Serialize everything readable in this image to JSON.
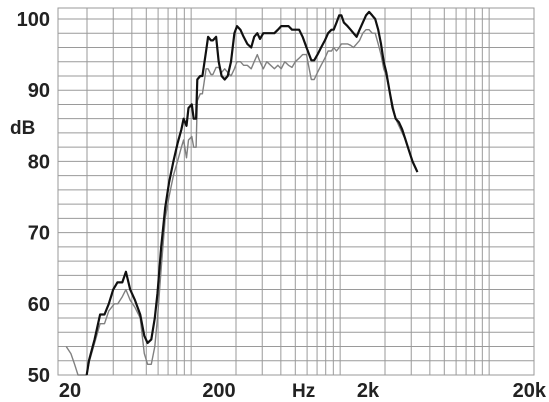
{
  "chart_data": {
    "type": "line",
    "title": "",
    "xlabel": "Hz",
    "ylabel": "dB",
    "x_scale": "log",
    "xlim": [
      15,
      20000
    ],
    "ylim": [
      50,
      102
    ],
    "grid": true,
    "legend": "none",
    "x_ticks": [
      {
        "value": 20,
        "label": "20"
      },
      {
        "value": 200,
        "label": "200"
      },
      {
        "value": 2000,
        "label": "2k"
      },
      {
        "value": 20000,
        "label": "20k"
      }
    ],
    "y_ticks": [
      {
        "value": 50,
        "label": "50"
      },
      {
        "value": 60,
        "label": "60"
      },
      {
        "value": 70,
        "label": "70"
      },
      {
        "value": 80,
        "label": "80"
      },
      {
        "value": 90,
        "label": "90"
      },
      {
        "value": 100,
        "label": "100"
      }
    ],
    "series": [
      {
        "color": "#111111",
        "width": 2.2,
        "points": [
          [
            19.9,
            49
          ],
          [
            20.6,
            52
          ],
          [
            22.5,
            55
          ],
          [
            24.5,
            58.5
          ],
          [
            26.2,
            58.5
          ],
          [
            28,
            60
          ],
          [
            30,
            62
          ],
          [
            32,
            63
          ],
          [
            34.5,
            63
          ],
          [
            36.5,
            64.5
          ],
          [
            39,
            62
          ],
          [
            42,
            60.5
          ],
          [
            45.5,
            58.5
          ],
          [
            48.5,
            55.5
          ],
          [
            51,
            54.5
          ],
          [
            54,
            55
          ],
          [
            57,
            58
          ],
          [
            59.5,
            61.5
          ],
          [
            63,
            68
          ],
          [
            67,
            73.5
          ],
          [
            71,
            77
          ],
          [
            76,
            80
          ],
          [
            81,
            82.5
          ],
          [
            86,
            84.5
          ],
          [
            89,
            86
          ],
          [
            93,
            85
          ],
          [
            96,
            87.5
          ],
          [
            101,
            88
          ],
          [
            104,
            86
          ],
          [
            108,
            86
          ],
          [
            110,
            91.5
          ],
          [
            115,
            92
          ],
          [
            119,
            92
          ],
          [
            122,
            93.5
          ],
          [
            126,
            95.5
          ],
          [
            130,
            97.5
          ],
          [
            136,
            97
          ],
          [
            140,
            97
          ],
          [
            147,
            97.5
          ],
          [
            153,
            94
          ],
          [
            160,
            92
          ],
          [
            168,
            91.5
          ],
          [
            176,
            92
          ],
          [
            185,
            94
          ],
          [
            195,
            98
          ],
          [
            203,
            99
          ],
          [
            214,
            98.5
          ],
          [
            225,
            97.5
          ],
          [
            238,
            96.5
          ],
          [
            253,
            96
          ],
          [
            265,
            97.5
          ],
          [
            278,
            98
          ],
          [
            290,
            97.2
          ],
          [
            305,
            98
          ],
          [
            322,
            98
          ],
          [
            342,
            98
          ],
          [
            362,
            98
          ],
          [
            382,
            98.5
          ],
          [
            402,
            99
          ],
          [
            425,
            99
          ],
          [
            450,
            99
          ],
          [
            475,
            98.5
          ],
          [
            500,
            98.5
          ],
          [
            530,
            98.5
          ],
          [
            560,
            97.5
          ],
          [
            595,
            96
          ],
          [
            620,
            95
          ],
          [
            640,
            94.2
          ],
          [
            670,
            94.2
          ],
          [
            705,
            95
          ],
          [
            745,
            96
          ],
          [
            790,
            97
          ],
          [
            830,
            98
          ],
          [
            875,
            98.5
          ],
          [
            905,
            98.5
          ],
          [
            945,
            99.5
          ],
          [
            985,
            100.5
          ],
          [
            1020,
            100.5
          ],
          [
            1060,
            99.5
          ],
          [
            1120,
            99
          ],
          [
            1175,
            98.5
          ],
          [
            1230,
            98
          ],
          [
            1290,
            97.5
          ],
          [
            1350,
            98.5
          ],
          [
            1420,
            99.5
          ],
          [
            1490,
            100.5
          ],
          [
            1565,
            101
          ],
          [
            1640,
            100.5
          ],
          [
            1720,
            100
          ],
          [
            1800,
            98.5
          ],
          [
            1880,
            96.5
          ],
          [
            1960,
            94
          ],
          [
            2040,
            92.5
          ],
          [
            2140,
            90
          ],
          [
            2250,
            87.5
          ],
          [
            2360,
            86
          ],
          [
            2480,
            85.5
          ],
          [
            2610,
            84.5
          ],
          [
            2750,
            83
          ],
          [
            2900,
            81.5
          ],
          [
            3060,
            80
          ],
          [
            3220,
            79
          ],
          [
            3300,
            78.5
          ]
        ]
      },
      {
        "color": "#808080",
        "width": 1.4,
        "points": [
          [
            14.5,
            54
          ],
          [
            15.6,
            53
          ],
          [
            16.5,
            51.5
          ],
          [
            17.4,
            50
          ],
          [
            19.9,
            49
          ],
          [
            20.8,
            52
          ],
          [
            22.5,
            54.5
          ],
          [
            24.5,
            57.2
          ],
          [
            26.2,
            57.2
          ],
          [
            28,
            59
          ],
          [
            30.5,
            60
          ],
          [
            32.2,
            60
          ],
          [
            34.5,
            61
          ],
          [
            36.5,
            62
          ],
          [
            39,
            60.5
          ],
          [
            42,
            59.5
          ],
          [
            45.5,
            58
          ],
          [
            48.5,
            53
          ],
          [
            51,
            51.5
          ],
          [
            54,
            51.5
          ],
          [
            57,
            54
          ],
          [
            59.5,
            58
          ],
          [
            63,
            65
          ],
          [
            67,
            72
          ],
          [
            71,
            75
          ],
          [
            76,
            78
          ],
          [
            81,
            80
          ],
          [
            86,
            82
          ],
          [
            89,
            83
          ],
          [
            93,
            80.5
          ],
          [
            96,
            83
          ],
          [
            101,
            83.5
          ],
          [
            104,
            82
          ],
          [
            108,
            82
          ],
          [
            110,
            88.5
          ],
          [
            115,
            89.5
          ],
          [
            119,
            89.5
          ],
          [
            122,
            91
          ],
          [
            126,
            93
          ],
          [
            130,
            93
          ],
          [
            136,
            92.2
          ],
          [
            140,
            92.2
          ],
          [
            147,
            93.2
          ],
          [
            153,
            93.2
          ],
          [
            160,
            92.5
          ],
          [
            168,
            93
          ],
          [
            176,
            92.5
          ],
          [
            185,
            92
          ],
          [
            195,
            93
          ],
          [
            203,
            94
          ],
          [
            214,
            94
          ],
          [
            225,
            93.5
          ],
          [
            238,
            93.5
          ],
          [
            253,
            93
          ],
          [
            265,
            94
          ],
          [
            278,
            95
          ],
          [
            290,
            94
          ],
          [
            305,
            93
          ],
          [
            322,
            94
          ],
          [
            342,
            93.5
          ],
          [
            362,
            93
          ],
          [
            382,
            93.5
          ],
          [
            402,
            93
          ],
          [
            425,
            94
          ],
          [
            450,
            93.5
          ],
          [
            475,
            93.2
          ],
          [
            500,
            94
          ],
          [
            530,
            94.5
          ],
          [
            560,
            95
          ],
          [
            595,
            95
          ],
          [
            620,
            93
          ],
          [
            640,
            91.5
          ],
          [
            670,
            91.5
          ],
          [
            705,
            92.5
          ],
          [
            745,
            93.5
          ],
          [
            790,
            94.5
          ],
          [
            830,
            95.5
          ],
          [
            875,
            95.5
          ],
          [
            905,
            96
          ],
          [
            945,
            95.5
          ],
          [
            985,
            96
          ],
          [
            1020,
            96.5
          ],
          [
            1060,
            96.5
          ],
          [
            1120,
            96.5
          ],
          [
            1175,
            96.3
          ],
          [
            1230,
            96
          ],
          [
            1290,
            96.5
          ],
          [
            1350,
            97
          ],
          [
            1420,
            98
          ],
          [
            1490,
            98.5
          ],
          [
            1565,
            98.5
          ],
          [
            1640,
            98
          ],
          [
            1720,
            98
          ],
          [
            1800,
            96.5
          ],
          [
            1880,
            95
          ],
          [
            1960,
            93
          ],
          [
            2040,
            92
          ],
          [
            2140,
            90
          ],
          [
            2250,
            88
          ],
          [
            2360,
            86
          ],
          [
            2480,
            85
          ],
          [
            2610,
            84
          ],
          [
            2750,
            83
          ],
          [
            2900,
            81.5
          ],
          [
            3060,
            80
          ],
          [
            3220,
            79
          ],
          [
            3300,
            78.5
          ]
        ]
      }
    ]
  }
}
